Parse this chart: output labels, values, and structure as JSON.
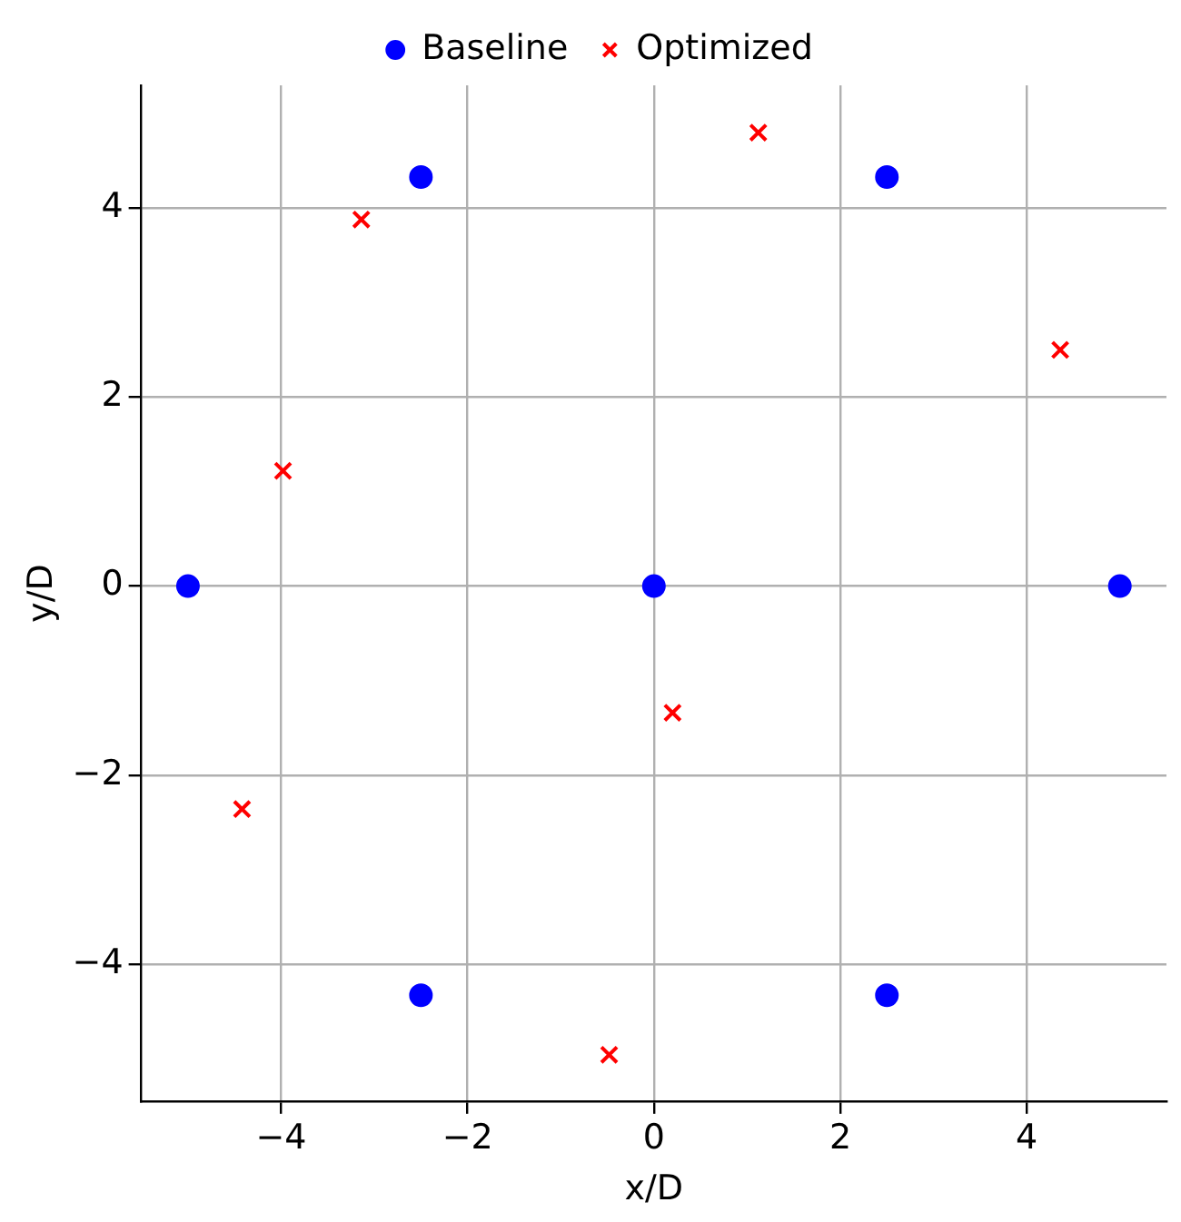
{
  "chart_data": {
    "type": "scatter",
    "xlabel": "x/D",
    "ylabel": "y/D",
    "xlim": [
      -5.5,
      5.5
    ],
    "ylim": [
      -5.45,
      5.3
    ],
    "xticks": [
      -4,
      -2,
      0,
      2,
      4
    ],
    "yticks": [
      -4,
      -2,
      0,
      2,
      4
    ],
    "grid": true,
    "legend": "top",
    "series": [
      {
        "name": "Baseline",
        "color": "#0000ff",
        "marker": "circle",
        "x": [
          -2.5,
          2.5,
          -5,
          0,
          5,
          -2.5,
          2.5
        ],
        "values": [
          4.33,
          4.33,
          0,
          0,
          0,
          -4.33,
          -4.33
        ]
      },
      {
        "name": "Optimized",
        "color": "#ff0000",
        "marker": "cross",
        "x": [
          1.12,
          -3.14,
          4.36,
          -3.98,
          0.2,
          -4.42,
          -0.48
        ],
        "values": [
          4.8,
          3.88,
          2.5,
          1.22,
          -1.34,
          -2.36,
          -4.96
        ]
      }
    ]
  }
}
